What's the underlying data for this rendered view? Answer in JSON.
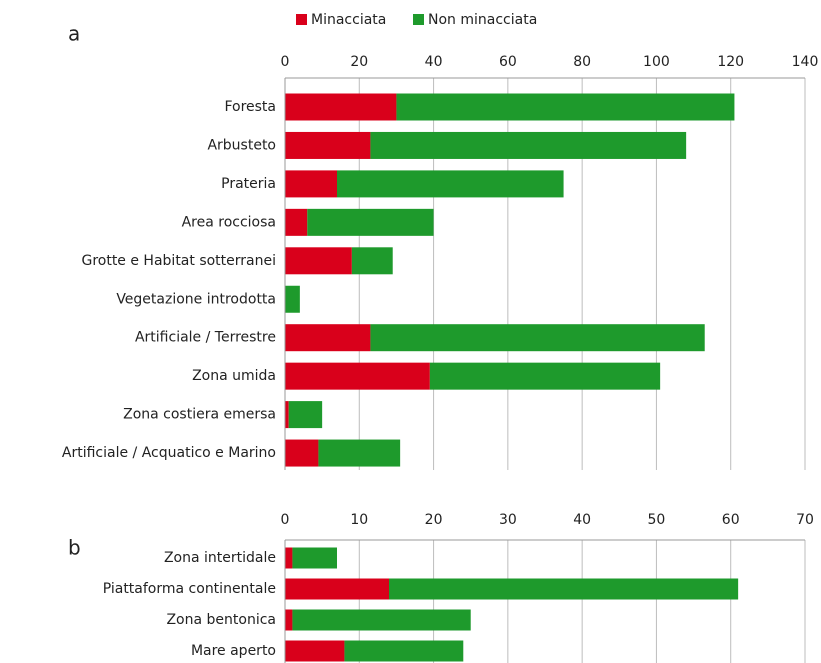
{
  "chart_data": [
    {
      "type": "bar",
      "orientation": "horizontal",
      "stacked": true,
      "label": "a",
      "categories": [
        "Foresta",
        "Arbusteto",
        "Prateria",
        "Area rocciosa",
        "Grotte e Habitat sotterranei",
        "Vegetazione introdotta",
        "Artificiale / Terrestre",
        "Zona umida",
        "Zona costiera emersa",
        "Artificiale / Acquatico e Marino"
      ],
      "series": [
        {
          "name": "Minacciata",
          "color": "#d9001b",
          "values": [
            30,
            23,
            14,
            6,
            18,
            0,
            23,
            39,
            1,
            9
          ]
        },
        {
          "name": "Non minacciata",
          "color": "#1e9a2c",
          "values": [
            91,
            85,
            61,
            34,
            11,
            4,
            90,
            62,
            9,
            22
          ]
        }
      ],
      "xlim": [
        0,
        140
      ],
      "xticks": [
        0,
        20,
        40,
        60,
        80,
        100,
        120,
        140
      ],
      "grid": true
    },
    {
      "type": "bar",
      "orientation": "horizontal",
      "stacked": true,
      "label": "b",
      "categories": [
        "Zona intertidale",
        "Piattaforma continentale",
        "Zona bentonica",
        "Mare aperto"
      ],
      "series": [
        {
          "name": "Minacciata",
          "color": "#d9001b",
          "values": [
            1,
            14,
            1,
            8
          ]
        },
        {
          "name": "Non minacciata",
          "color": "#1e9a2c",
          "values": [
            6,
            47,
            24,
            16
          ]
        }
      ],
      "xlim": [
        0,
        70
      ],
      "xticks": [
        0,
        10,
        20,
        30,
        40,
        50,
        60,
        70
      ],
      "grid": true
    }
  ]
}
